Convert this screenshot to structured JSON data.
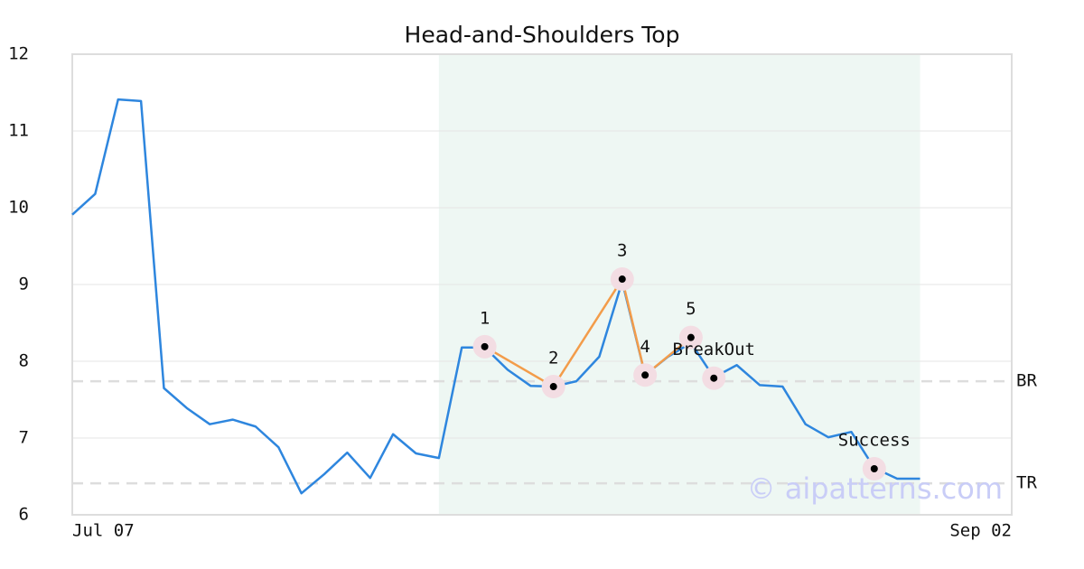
{
  "chart_data": {
    "type": "line",
    "title": "Head-and-Shoulders Top",
    "x": [
      0,
      1,
      2,
      3,
      4,
      5,
      6,
      7,
      8,
      9,
      10,
      11,
      12,
      13,
      14,
      15,
      16,
      17,
      18,
      19,
      20,
      21,
      22,
      23,
      24,
      25,
      26,
      27,
      28,
      29,
      30,
      31,
      32,
      33,
      34,
      35,
      36,
      37
    ],
    "values": [
      9.91,
      10.18,
      11.41,
      11.39,
      7.65,
      7.39,
      7.18,
      7.24,
      7.15,
      6.88,
      6.28,
      6.53,
      6.81,
      6.48,
      7.05,
      6.8,
      6.74,
      8.18,
      8.18,
      7.89,
      7.68,
      7.67,
      7.74,
      8.06,
      9.04,
      7.82,
      8.06,
      8.24,
      7.79,
      7.95,
      7.69,
      7.67,
      7.18,
      7.01,
      7.08,
      6.61,
      6.47,
      6.47
    ],
    "color": "#2e86de",
    "xlim": [
      0,
      41
    ],
    "xticks": [
      {
        "value": 0,
        "label": "Jul 07"
      },
      {
        "value": 41,
        "label": "Sep 02"
      }
    ],
    "ylim": [
      6,
      12
    ],
    "yticks": [
      6,
      7,
      8,
      9,
      10,
      11,
      12
    ],
    "grid": true,
    "highlight_range": [
      16,
      37
    ],
    "pattern": {
      "labels": [
        "1",
        "2",
        "3",
        "4",
        "5"
      ],
      "x": [
        18,
        21,
        24,
        25,
        27
      ],
      "values": [
        8.19,
        7.67,
        9.07,
        7.82,
        8.31
      ],
      "color": "#f39c4a"
    },
    "signals": [
      {
        "label": "BreakOut",
        "x": 28,
        "value": 7.78
      },
      {
        "label": "Success",
        "x": 35,
        "value": 6.6
      }
    ],
    "levels": [
      {
        "label": "BR",
        "value": 7.74
      },
      {
        "label": "TR",
        "value": 6.41
      }
    ],
    "watermark": "© aipatterns.com"
  }
}
